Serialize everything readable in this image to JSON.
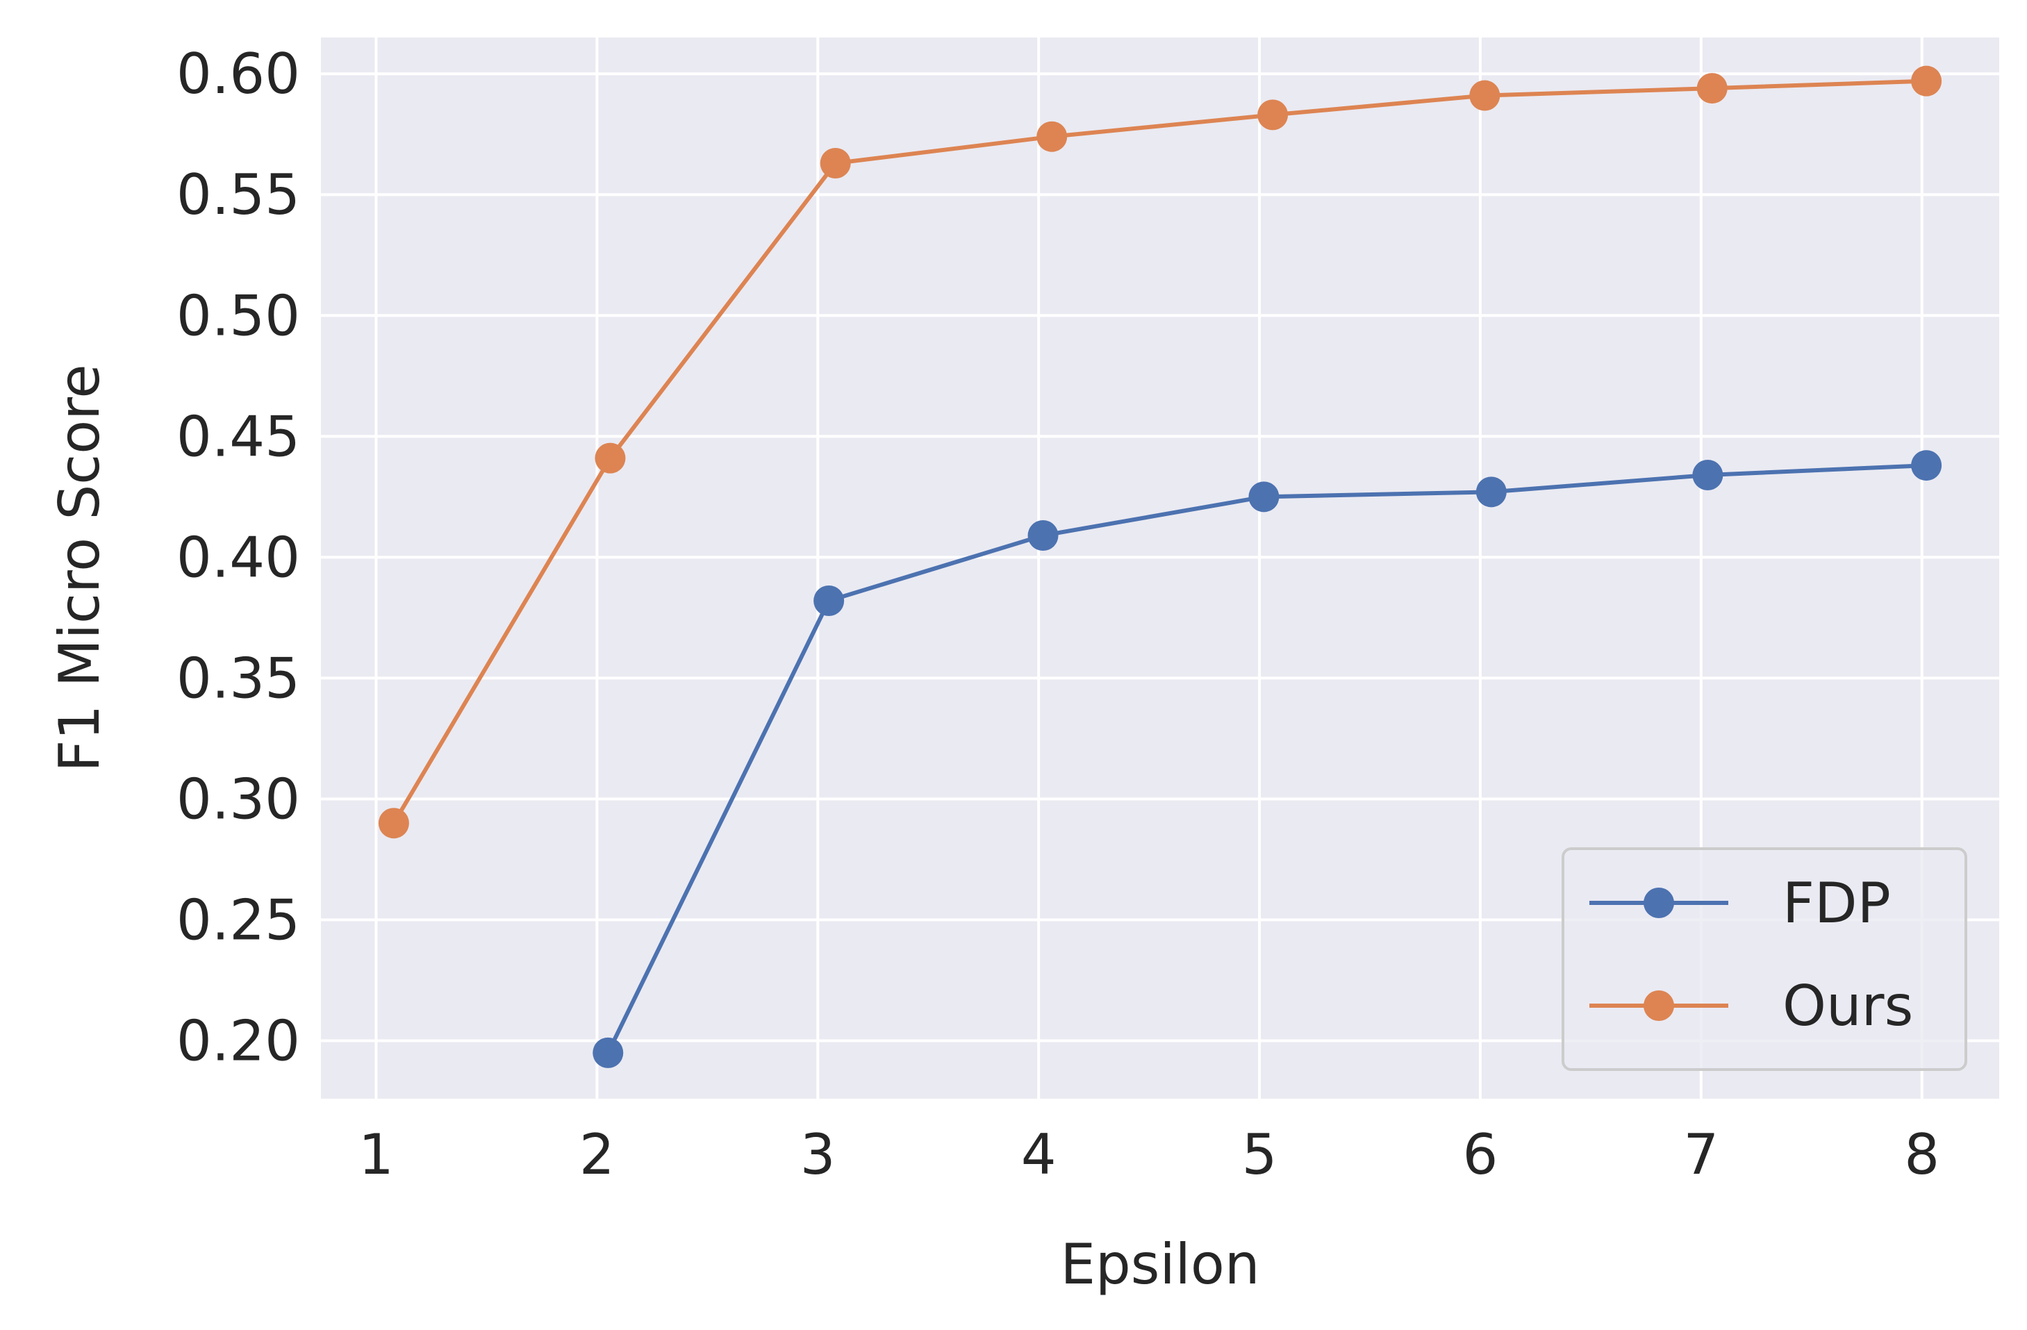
{
  "chart_data": {
    "type": "line",
    "title": "",
    "xlabel": "Epsilon",
    "ylabel": "F1 Micro Score",
    "x_ticks": [
      "1",
      "2",
      "3",
      "4",
      "5",
      "6",
      "7",
      "8"
    ],
    "y_ticks": [
      "0.20",
      "0.25",
      "0.30",
      "0.35",
      "0.40",
      "0.45",
      "0.50",
      "0.55",
      "0.60"
    ],
    "xlim": [
      0.75,
      8.35
    ],
    "ylim": [
      0.176,
      0.615
    ],
    "grid": true,
    "legend_position": "lower-right",
    "series": [
      {
        "name": "FDP",
        "color": "#4c72b0",
        "x": [
          2.05,
          3.05,
          4.02,
          5.02,
          6.05,
          7.03,
          8.02
        ],
        "y": [
          0.195,
          0.382,
          0.409,
          0.425,
          0.427,
          0.434,
          0.438
        ]
      },
      {
        "name": "Ours",
        "color": "#dd8452",
        "x": [
          1.08,
          2.06,
          3.08,
          4.06,
          5.06,
          6.02,
          7.05,
          8.02
        ],
        "y": [
          0.29,
          0.441,
          0.563,
          0.574,
          0.583,
          0.591,
          0.594,
          0.597
        ]
      }
    ]
  }
}
